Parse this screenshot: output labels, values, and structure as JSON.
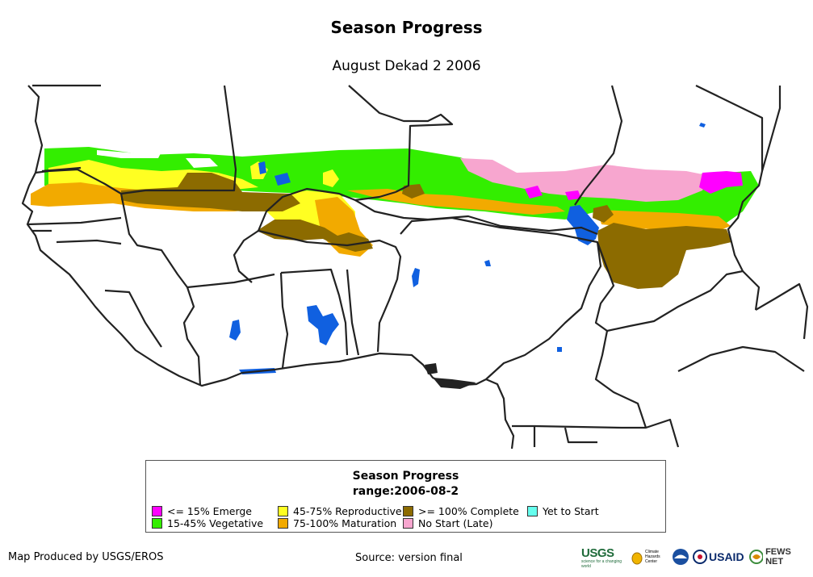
{
  "header": {
    "title": "Season Progress",
    "subtitle": "August Dekad 2 2006"
  },
  "legend": {
    "title_line1": "Season Progress",
    "title_line2": "range:2006-08-2",
    "items": [
      {
        "label": "<= 15% Emerge",
        "color": "#ff00ff"
      },
      {
        "label": "15-45% Vegetative",
        "color": "#33ee00"
      },
      {
        "label": "45-75% Reproductive",
        "color": "#ffff22"
      },
      {
        "label": "75-100% Maturation",
        "color": "#f2aa00"
      },
      {
        "label": ">= 100% Complete",
        "color": "#8c6b00"
      },
      {
        "label": "No Start (Late)",
        "color": "#f7a6cf"
      },
      {
        "label": "Yet to Start",
        "color": "#66ffee"
      }
    ]
  },
  "map": {
    "water_color": "#1060e0",
    "border_color": "#222222"
  },
  "footer": {
    "produced_by": "Map Produced by USGS/EROS",
    "source": "Source: version final"
  },
  "logos": {
    "usgs": "USGS",
    "usgs_tagline": "science for a changing world",
    "chc_line1": "Climate",
    "chc_line2": "Hazards",
    "chc_line3": "Center",
    "usaid": "USAID",
    "fewsnet": "FEWS NET"
  }
}
